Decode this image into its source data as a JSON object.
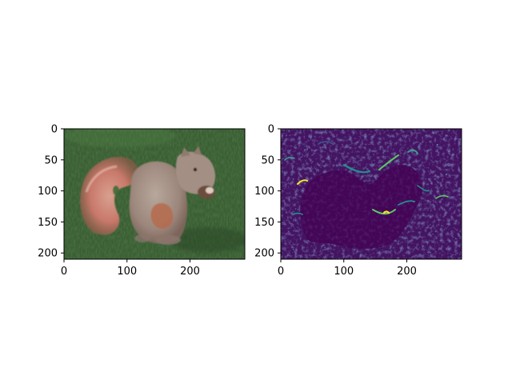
{
  "figure": {
    "background": "#ffffff",
    "panels": [
      {
        "name": "original-squirrel-photo",
        "content": "photo",
        "x_ticks": [
          0,
          100,
          200
        ],
        "y_ticks": [
          0,
          50,
          100,
          150,
          200
        ],
        "x_range": [
          0,
          287
        ],
        "y_range": [
          0,
          210
        ],
        "colors": {
          "grass_dark": "#2d4a2a",
          "grass": "#3f6a37",
          "fur_gray": "#a8948a",
          "tail_rust": "#c8786a"
        }
      },
      {
        "name": "processed-squirrel-map",
        "content": "viridis-map",
        "x_ticks": [
          0,
          100,
          200
        ],
        "y_ticks": [
          0,
          50,
          100,
          150,
          200
        ],
        "x_range": [
          0,
          287
        ],
        "y_range": [
          0,
          210
        ],
        "colors": {
          "low": "#440154",
          "mid_low": "#3b528b",
          "mid": "#21918c",
          "high": "#5ec962",
          "peak": "#fde725"
        }
      }
    ]
  }
}
